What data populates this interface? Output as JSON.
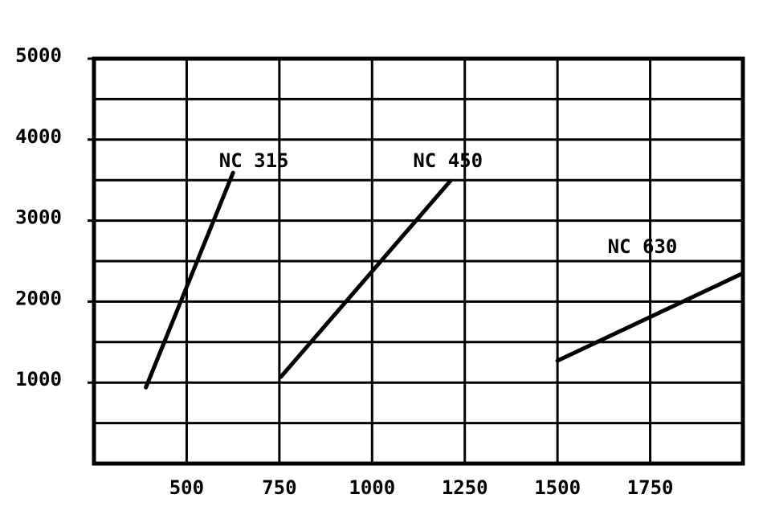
{
  "chart_data": {
    "type": "line",
    "x": [
      [
        390,
        625
      ],
      [
        754,
        1211
      ],
      [
        1500,
        2000
      ]
    ],
    "series": [
      {
        "name": "NC 315",
        "color": "#000000",
        "x": [
          390,
          625
        ],
        "values": [
          940,
          3590
        ]
      },
      {
        "name": "NC 450",
        "color": "#000000",
        "x": [
          754,
          1211
        ],
        "values": [
          1070,
          3490
        ]
      },
      {
        "name": "NC 630",
        "color": "#000000",
        "x": [
          1500,
          2000
        ],
        "values": [
          1270,
          2350
        ]
      }
    ],
    "xlim": [
      250,
      2000
    ],
    "xticks": [
      500,
      750,
      1000,
      1250,
      1500,
      1750
    ],
    "ylim": [
      0,
      5000
    ],
    "yticks": [
      1000,
      2000,
      3000,
      4000,
      5000
    ],
    "minor_yticks": [
      500,
      1500,
      2500,
      3500,
      4500
    ],
    "grid": true
  }
}
